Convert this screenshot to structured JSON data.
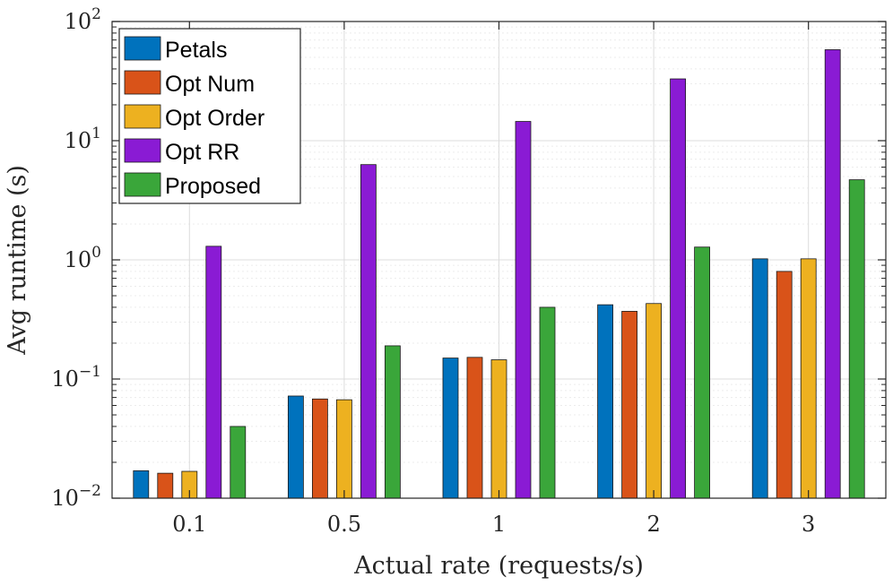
{
  "chart_data": {
    "type": "bar",
    "title": "",
    "xlabel": "Actual rate (requests/s)",
    "ylabel": "Avg runtime (s)",
    "yscale": "log",
    "ylim": [
      0.01,
      100
    ],
    "grid": true,
    "legend_position": "top-left",
    "categories": [
      "0.1",
      "0.5",
      "1",
      "2",
      "3"
    ],
    "y_ticks": [
      {
        "base": "10",
        "exp": "−2",
        "value": 0.01
      },
      {
        "base": "10",
        "exp": "−1",
        "value": 0.1
      },
      {
        "base": "10",
        "exp": "0",
        "value": 1
      },
      {
        "base": "10",
        "exp": "1",
        "value": 10
      },
      {
        "base": "10",
        "exp": "2",
        "value": 100
      }
    ],
    "series": [
      {
        "name": "Petals",
        "color": "#0072BD",
        "values": [
          0.017,
          0.072,
          0.15,
          0.42,
          1.02
        ]
      },
      {
        "name": "Opt Num",
        "color": "#D95319",
        "values": [
          0.0162,
          0.068,
          0.152,
          0.37,
          0.8
        ]
      },
      {
        "name": "Opt Order",
        "color": "#EDB120",
        "values": [
          0.0168,
          0.067,
          0.145,
          0.43,
          1.02
        ]
      },
      {
        "name": "Opt RR",
        "color": "#7E2F8E",
        "display_color": "#8A1BD4",
        "values": [
          1.3,
          6.3,
          14.5,
          33,
          58
        ]
      },
      {
        "name": "Proposed",
        "color": "#3AA63A",
        "values": [
          0.04,
          0.19,
          0.4,
          1.28,
          4.7
        ]
      }
    ]
  }
}
